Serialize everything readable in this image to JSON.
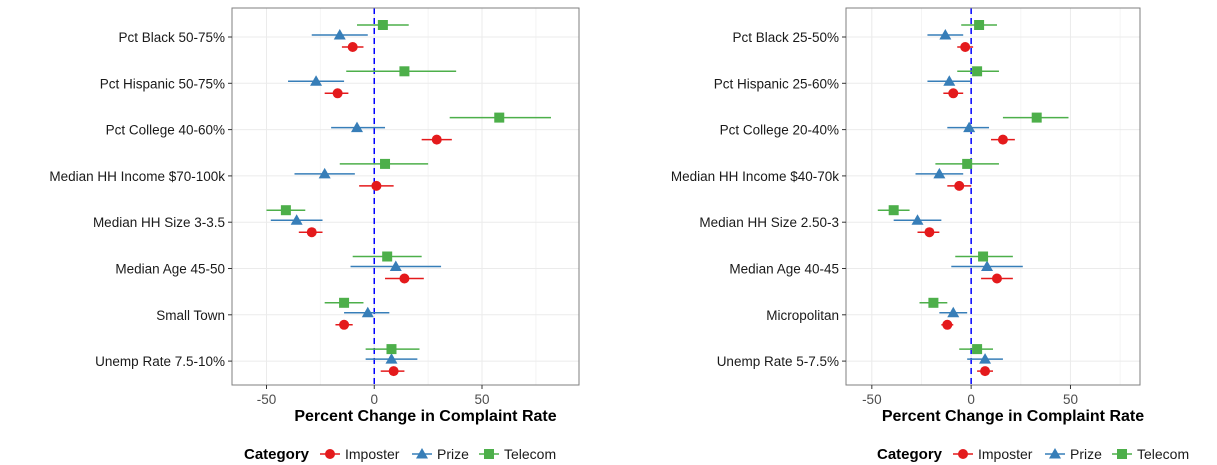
{
  "colors": {
    "Imposter": "#e41a1c",
    "Prize": "#377eb8",
    "Telecom": "#4daf4a",
    "zero_line": "#0000ff",
    "grid": "#ebebeb",
    "panel_border": "#7f7f7f"
  },
  "legend": {
    "title": "Category",
    "items": [
      {
        "label": "Imposter",
        "shape": "circle"
      },
      {
        "label": "Prize",
        "shape": "triangle"
      },
      {
        "label": "Telecom",
        "shape": "square"
      }
    ]
  },
  "chart_data": [
    {
      "type": "scatter",
      "subtype": "dot-whisker",
      "xlabel": "Percent Change in Complaint Rate",
      "xlim": [
        -66,
        95
      ],
      "xticks": [
        -50,
        0,
        50
      ],
      "grid": true,
      "reference_line_x": 0,
      "categories": [
        "Pct Black 50-75%",
        "Pct Hispanic 50-75%",
        "Pct College 40-60%",
        "Median HH Income $70-100k",
        "Median HH Size 3-3.5",
        "Median Age 45-50",
        "Small Town",
        "Unemp Rate 7.5-10%"
      ],
      "series": [
        {
          "name": "Imposter",
          "values": [
            -10,
            -17,
            29,
            1,
            -29,
            14,
            -14,
            9
          ],
          "lower": [
            -15,
            -23,
            22,
            -7,
            -35,
            5,
            -18,
            3
          ],
          "upper": [
            -5,
            -12,
            36,
            9,
            -24,
            23,
            -10,
            14
          ]
        },
        {
          "name": "Prize",
          "values": [
            -16,
            -27,
            -8,
            -23,
            -36,
            10,
            -3,
            8
          ],
          "lower": [
            -29,
            -40,
            -20,
            -37,
            -48,
            -11,
            -14,
            -4
          ],
          "upper": [
            -3,
            -14,
            5,
            -9,
            -24,
            31,
            7,
            20
          ]
        },
        {
          "name": "Telecom",
          "values": [
            4,
            14,
            58,
            5,
            -41,
            6,
            -14,
            8
          ],
          "lower": [
            -8,
            -13,
            35,
            -16,
            -50,
            -10,
            -23,
            -4
          ],
          "upper": [
            16,
            38,
            82,
            25,
            -32,
            22,
            -5,
            21
          ]
        }
      ]
    },
    {
      "type": "scatter",
      "subtype": "dot-whisker",
      "xlabel": "Percent Change in Complaint Rate",
      "xlim": [
        -63,
        85
      ],
      "xticks": [
        -50,
        0,
        50
      ],
      "grid": true,
      "reference_line_x": 0,
      "categories": [
        "Pct Black 25-50%",
        "Pct Hispanic 25-60%",
        "Pct College 20-40%",
        "Median HH Income $40-70k",
        "Median HH Size 2.50-3",
        "Median Age 40-45",
        "Micropolitan",
        "Unemp Rate 5-7.5%"
      ],
      "series": [
        {
          "name": "Imposter",
          "values": [
            -3,
            -9,
            16,
            -6,
            -21,
            13,
            -12,
            7
          ],
          "lower": [
            -7,
            -14,
            10,
            -12,
            -27,
            5,
            -15,
            3
          ],
          "upper": [
            1,
            -4,
            22,
            0,
            -16,
            21,
            -9,
            11
          ]
        },
        {
          "name": "Prize",
          "values": [
            -13,
            -11,
            -1,
            -16,
            -27,
            8,
            -9,
            7
          ],
          "lower": [
            -22,
            -22,
            -12,
            -28,
            -39,
            -10,
            -16,
            -2
          ],
          "upper": [
            -4,
            0,
            9,
            -4,
            -15,
            26,
            -2,
            16
          ]
        },
        {
          "name": "Telecom",
          "values": [
            4,
            3,
            33,
            -2,
            -39,
            6,
            -19,
            3
          ],
          "lower": [
            -5,
            -7,
            16,
            -18,
            -47,
            -8,
            -26,
            -6
          ],
          "upper": [
            13,
            14,
            49,
            14,
            -31,
            21,
            -12,
            11
          ]
        }
      ]
    }
  ]
}
